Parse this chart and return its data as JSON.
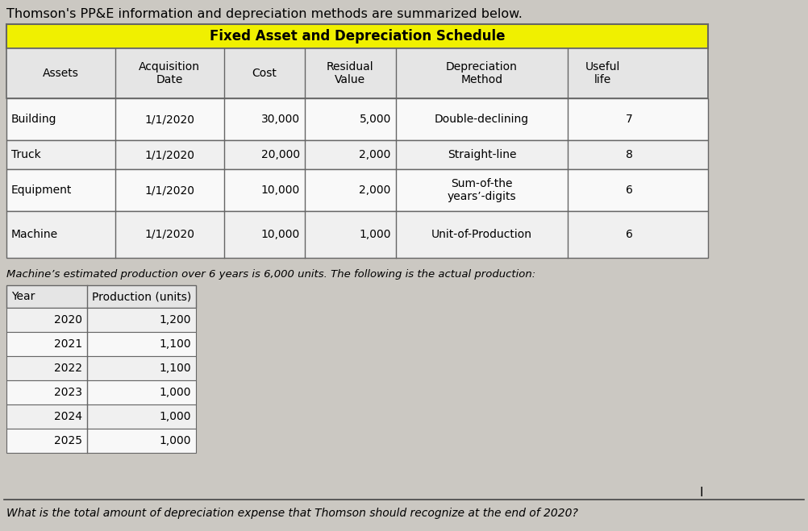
{
  "title": "Thomson's PP&E information and depreciation methods are summarized below.",
  "table1_title": "Fixed Asset and Depreciation Schedule",
  "table1_headers": [
    "Assets",
    "Acquisition\nDate",
    "Cost",
    "Residual\nValue",
    "Depreciation\nMethod",
    "Useful\nlife"
  ],
  "table1_rows": [
    [
      "Building",
      "1/1/2020",
      "30,000",
      "5,000",
      "Double-declining",
      "7"
    ],
    [
      "Truck",
      "1/1/2020",
      "20,000",
      "2,000",
      "Straight-line",
      "8"
    ],
    [
      "Equipment",
      "1/1/2020",
      "10,000",
      "2,000",
      "Sum-of-the\nyears’-digits",
      "6"
    ],
    [
      "Machine",
      "1/1/2020",
      "10,000",
      "1,000",
      "Unit-of-Production",
      "6"
    ]
  ],
  "note_text": "Machine’s estimated production over 6 years is 6,000 units. The following is the actual production:",
  "table2_headers": [
    "Year",
    "Production (units)"
  ],
  "table2_rows": [
    [
      "2020",
      "1,200"
    ],
    [
      "2021",
      "1,100"
    ],
    [
      "2022",
      "1,100"
    ],
    [
      "2023",
      "1,000"
    ],
    [
      "2024",
      "1,000"
    ],
    [
      "2025",
      "1,000"
    ]
  ],
  "question": "What is the total amount of depreciation expense that Thomson should recognize at the end of 2020?",
  "bg_color": "#cbc8c2",
  "table_title_bg": "#f0f000",
  "table_border_color": "#666666",
  "cell_bg_white": "#f8f8f8",
  "cell_bg_light": "#eeeeee",
  "title_fontsize": 11.5,
  "header_fontsize": 10,
  "cell_fontsize": 10,
  "note_fontsize": 9.5,
  "question_fontsize": 10
}
